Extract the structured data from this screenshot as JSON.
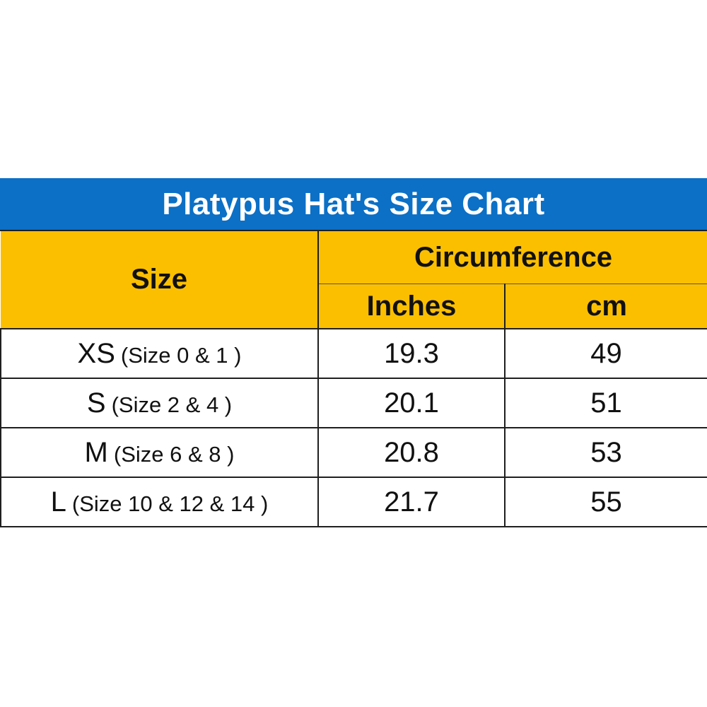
{
  "title": "Platypus Hat's Size Chart",
  "colors": {
    "title_background": "#0b70c6",
    "title_text": "#ffffff",
    "header_background": "#fcbf00",
    "body_background": "#ffffff",
    "border": "#1f1f1f"
  },
  "headers": {
    "size": "Size",
    "circumference": "Circumference",
    "inches": "Inches",
    "cm": "cm"
  },
  "rows": [
    {
      "size": "XS",
      "detail": "(Size 0 & 1 )",
      "inches": "19.3",
      "cm": "49"
    },
    {
      "size": "S",
      "detail": "(Size 2 & 4 )",
      "inches": "20.1",
      "cm": "51"
    },
    {
      "size": "M",
      "detail": "(Size 6 & 8 )",
      "inches": "20.8",
      "cm": "53"
    },
    {
      "size": "L",
      "detail": "(Size 10 & 12 & 14 )",
      "inches": "21.7",
      "cm": "55"
    }
  ],
  "chart_data": {
    "type": "table",
    "title": "Platypus Hat's Size Chart",
    "columns": [
      "Size",
      "Inches",
      "cm"
    ],
    "column_group": "Circumference",
    "rows": [
      [
        "XS (Size 0 & 1 )",
        19.3,
        49
      ],
      [
        "S (Size 2 & 4 )",
        20.1,
        51
      ],
      [
        "M (Size 6 & 8 )",
        20.8,
        53
      ],
      [
        "L (Size 10 & 12 & 14 )",
        21.7,
        55
      ]
    ]
  }
}
